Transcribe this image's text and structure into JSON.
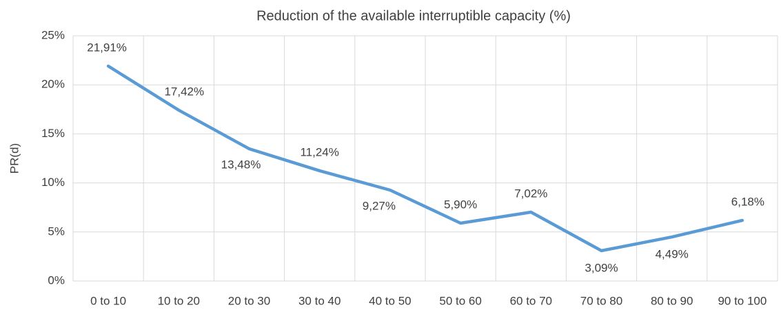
{
  "chart_data": {
    "type": "line",
    "title": "Reduction of the available interruptible capacity (%)",
    "y_label": "PR(d)",
    "categories": [
      "0 to 10",
      "10 to 20",
      "20 to 30",
      "30 to 40",
      "40 to 50",
      "50 to 60",
      "60 to 70",
      "70 to 80",
      "80 to 90",
      "90 to 100"
    ],
    "series": [
      {
        "name": "PR(d)",
        "color": "#5b9bd5",
        "values": [
          21.91,
          17.42,
          13.48,
          11.24,
          9.27,
          5.9,
          7.02,
          3.09,
          4.49,
          6.18
        ],
        "value_labels": [
          "21,91%",
          "17,42%",
          "13,48%",
          "11,24%",
          "9,27%",
          "5,90%",
          "7,02%",
          "3,09%",
          "4,49%",
          "6,18%"
        ]
      }
    ],
    "ylim": [
      0,
      25
    ],
    "yticks": [
      {
        "value": 0,
        "label": "0%"
      },
      {
        "value": 5,
        "label": "5%"
      },
      {
        "value": 10,
        "label": "10%"
      },
      {
        "value": 15,
        "label": "15%"
      },
      {
        "value": 20,
        "label": "20%"
      },
      {
        "value": 25,
        "label": "25%"
      }
    ],
    "grid": true
  }
}
